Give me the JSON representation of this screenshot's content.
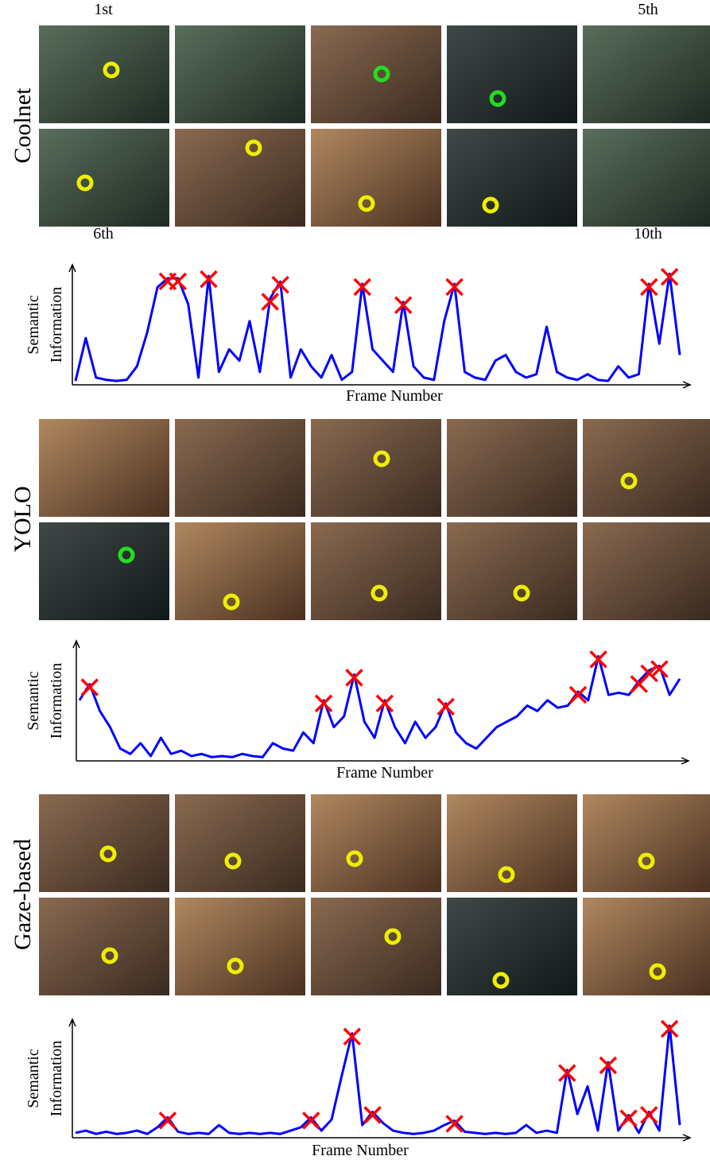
{
  "rows": [
    {
      "method": "Coolnet",
      "frame_labels": [
        "1st",
        "5th",
        "6th",
        "10th"
      ],
      "chart": {
        "type": "line",
        "ylabel": [
          "Semantic",
          "Information"
        ],
        "xlabel": "Frame Number",
        "color": "#0000ff",
        "marker_color": "#ff0000",
        "ylim": [
          0,
          100
        ],
        "values": [
          2,
          40,
          5,
          3,
          2,
          3,
          15,
          45,
          85,
          93,
          93,
          70,
          5,
          95,
          10,
          30,
          20,
          55,
          10,
          75,
          90,
          5,
          30,
          15,
          5,
          25,
          3,
          10,
          88,
          30,
          20,
          10,
          72,
          15,
          5,
          3,
          55,
          88,
          10,
          5,
          3,
          20,
          25,
          10,
          5,
          8,
          50,
          10,
          5,
          3,
          8,
          3,
          2,
          15,
          5,
          8,
          88,
          35,
          97,
          25
        ],
        "keyframes": [
          9,
          10,
          13,
          19,
          20,
          28,
          32,
          37,
          56,
          58
        ]
      }
    },
    {
      "method": "YOLO",
      "chart": {
        "type": "line",
        "ylabel": [
          "Semantic",
          "Information"
        ],
        "xlabel": "Frame Number",
        "color": "#0000ff",
        "marker_color": "#ff0000",
        "ylim": [
          0,
          100
        ],
        "values": [
          55,
          70,
          45,
          30,
          10,
          5,
          15,
          3,
          20,
          5,
          8,
          3,
          5,
          2,
          3,
          2,
          5,
          3,
          2,
          15,
          10,
          8,
          25,
          15,
          55,
          30,
          40,
          79,
          35,
          20,
          55,
          30,
          15,
          35,
          20,
          30,
          52,
          25,
          15,
          10,
          20,
          30,
          35,
          40,
          50,
          45,
          55,
          48,
          50,
          63,
          55,
          96,
          60,
          62,
          60,
          73,
          83,
          87,
          60,
          75
        ],
        "keyframes": [
          1,
          24,
          27,
          30,
          36,
          49,
          51,
          55,
          56,
          57
        ]
      }
    },
    {
      "method": "Gaze-based",
      "chart": {
        "type": "line",
        "ylabel": [
          "Semantic",
          "Information"
        ],
        "xlabel": "Frame Number",
        "color": "#0000ff",
        "marker_color": "#ff0000",
        "ylim": [
          0,
          100
        ],
        "values": [
          3,
          5,
          2,
          4,
          2,
          3,
          5,
          2,
          8,
          17,
          4,
          2,
          3,
          2,
          10,
          3,
          2,
          3,
          2,
          3,
          2,
          5,
          8,
          17,
          5,
          15,
          55,
          93,
          10,
          22,
          12,
          5,
          3,
          2,
          3,
          5,
          10,
          14,
          4,
          3,
          2,
          3,
          2,
          3,
          10,
          3,
          5,
          3,
          60,
          20,
          45,
          5,
          67,
          5,
          19,
          3,
          22,
          5,
          100,
          10
        ],
        "keyframes": [
          9,
          23,
          27,
          29,
          37,
          48,
          52,
          54,
          56,
          58
        ]
      }
    }
  ]
}
